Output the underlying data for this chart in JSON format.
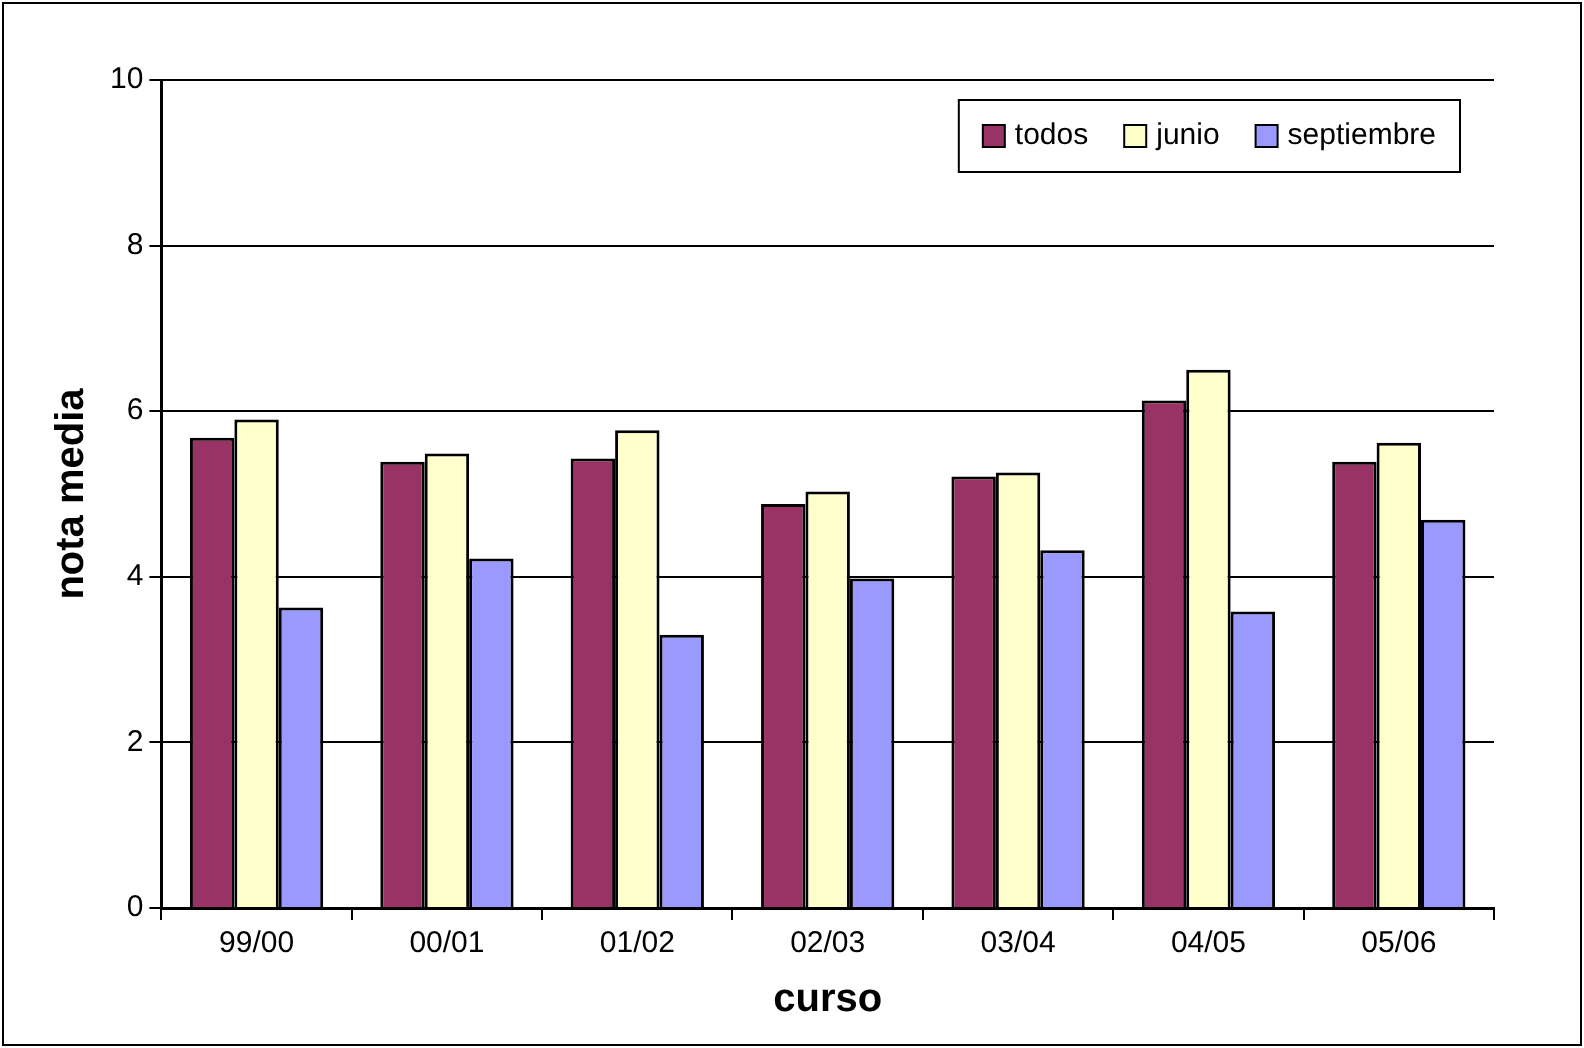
{
  "chart_data": {
    "type": "bar",
    "xlabel": "curso",
    "ylabel": "nota media",
    "categories": [
      "99/00",
      "00/01",
      "01/02",
      "02/03",
      "03/04",
      "04/05",
      "05/06"
    ],
    "series": [
      {
        "name": "todos",
        "color": "#993366",
        "values": [
          5.68,
          5.39,
          5.43,
          4.88,
          5.21,
          6.13,
          5.39
        ]
      },
      {
        "name": "junio",
        "color": "#ffffcc",
        "values": [
          5.9,
          5.49,
          5.77,
          5.03,
          5.26,
          6.5,
          5.62
        ]
      },
      {
        "name": "septiembre",
        "color": "#9999ff",
        "values": [
          3.63,
          4.22,
          3.3,
          3.98,
          4.32,
          3.58,
          4.69
        ]
      }
    ],
    "ylim": [
      0,
      10
    ],
    "yticks": [
      0,
      2,
      4,
      6,
      8,
      10
    ],
    "grid": "y",
    "legend": "top right"
  }
}
